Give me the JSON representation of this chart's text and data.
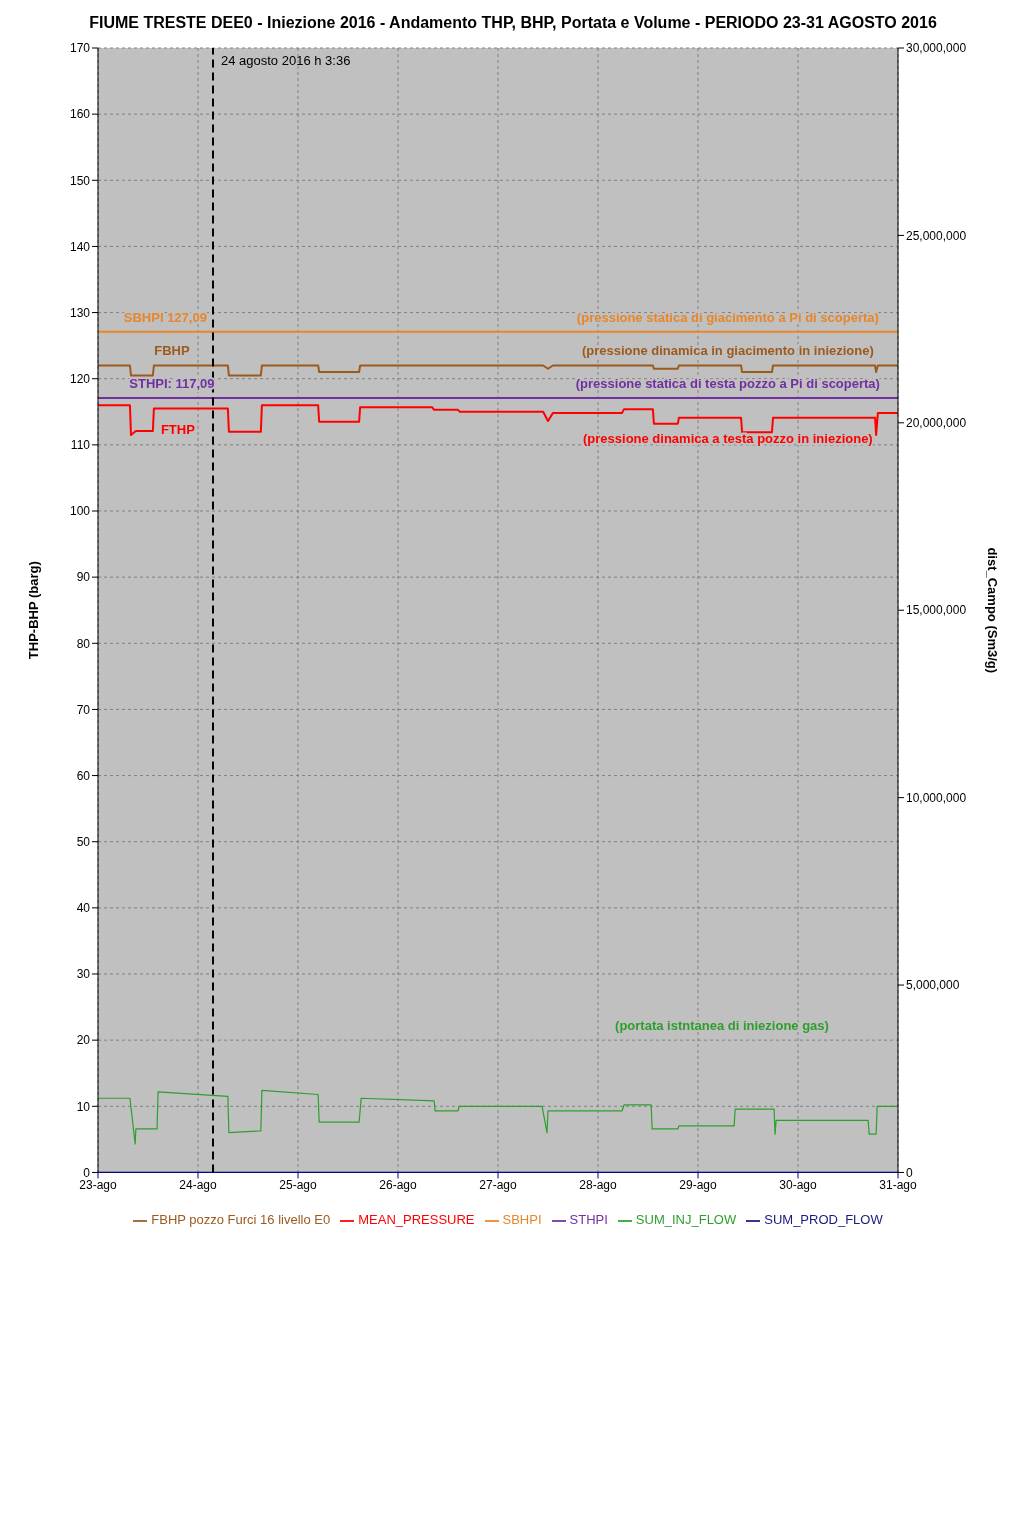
{
  "chart_data": {
    "type": "line",
    "title": "FIUME  TRESTE DEE0 - Iniezione 2016 - Andamento THP, BHP, Portata e Volume - PERIODO 23-31 AGOSTO 2016",
    "ylabel": "THP-BHP (barg)",
    "y2label": "dist_Campo (Sm3/g)",
    "x": [
      "2016-08-23T00:00",
      "2016-08-23T07:40",
      "2016-08-23T07:55",
      "2016-08-23T09:05",
      "2016-08-23T13:10",
      "2016-08-23T13:25",
      "2016-08-24T07:10",
      "2016-08-24T07:25",
      "2016-08-24T15:05",
      "2016-08-24T15:20",
      "2016-08-25T04:50",
      "2016-08-25T05:05",
      "2016-08-25T14:40",
      "2016-08-25T14:55",
      "2016-08-26T08:10",
      "2016-08-26T08:40",
      "2016-08-26T14:25",
      "2016-08-26T14:50",
      "2016-08-27T10:50",
      "2016-08-27T12:00",
      "2016-08-27T13:10",
      "2016-08-28T05:45",
      "2016-08-28T06:15",
      "2016-08-28T13:10",
      "2016-08-28T13:25",
      "2016-08-28T19:10",
      "2016-08-28T19:25",
      "2016-08-29T10:20",
      "2016-08-29T10:35",
      "2016-08-29T17:45",
      "2016-08-29T18:00",
      "2016-08-30T18:30",
      "2016-08-30T18:45",
      "2016-08-30T19:10",
      "2016-08-31T00:00"
    ],
    "series": [
      {
        "name": "SUM_PROD_FLOW",
        "color": "#1a1a80",
        "axis": "y2",
        "x": [
          "2016-08-23T00:00",
          "2016-08-31T00:00"
        ],
        "values": [
          0,
          0
        ]
      },
      {
        "name": "STHPI",
        "color": "#7030a0",
        "x": [
          "2016-08-23T00:00",
          "2016-08-31T00:00"
        ],
        "values": [
          117.09,
          117.09
        ]
      },
      {
        "name": "FBHP pozzo Furci 16 livello E0",
        "color": "#9c5a1e",
        "values": [
          122,
          122,
          120.5,
          120.5,
          120.5,
          122,
          122,
          120.5,
          120.5,
          122,
          122,
          121,
          121,
          122,
          122,
          122,
          122,
          122,
          122,
          121.5,
          122,
          122,
          122,
          122,
          121.5,
          121.5,
          122,
          122,
          121,
          121,
          122,
          122,
          121,
          122,
          122
        ]
      },
      {
        "name": "MEAN_PRESSURE",
        "color": "#ff0000",
        "values": [
          116,
          116,
          111.5,
          112.1,
          112.1,
          115.5,
          115.5,
          112,
          112,
          116,
          116,
          113.5,
          113.5,
          115.7,
          115.7,
          115.3,
          115.3,
          115,
          115,
          113.6,
          114.8,
          114.8,
          115.4,
          115.4,
          113.2,
          113.2,
          114.1,
          114.1,
          111.9,
          111.9,
          114.1,
          114.1,
          111.5,
          114.8,
          114.8
        ]
      },
      {
        "name": "SBHPI",
        "color": "#e8862a",
        "x": [
          "2016-08-23T00:00",
          "2016-08-31T00:00"
        ],
        "values": [
          127.09,
          127.09
        ]
      },
      {
        "name": "SUM_INJ_FLOW",
        "color": "#2e9e2e",
        "axis": "y2",
        "x": [
          "2016-08-23T00:00",
          "2016-08-23T07:40",
          "2016-08-23T08:55",
          "2016-08-23T09:05",
          "2016-08-23T14:10",
          "2016-08-23T14:25",
          "2016-08-24T07:10",
          "2016-08-24T07:25",
          "2016-08-24T15:05",
          "2016-08-24T15:20",
          "2016-08-25T04:50",
          "2016-08-25T05:05",
          "2016-08-25T14:40",
          "2016-08-25T15:10",
          "2016-08-26T08:40",
          "2016-08-26T08:55",
          "2016-08-26T14:25",
          "2016-08-26T14:40",
          "2016-08-27T10:35",
          "2016-08-27T11:45",
          "2016-08-27T12:00",
          "2016-08-28T05:45",
          "2016-08-28T06:15",
          "2016-08-28T12:45",
          "2016-08-28T13:00",
          "2016-08-28T19:10",
          "2016-08-28T19:25",
          "2016-08-29T08:40",
          "2016-08-29T08:55",
          "2016-08-29T18:15",
          "2016-08-29T18:30",
          "2016-08-29T18:45",
          "2016-08-30T16:50",
          "2016-08-30T17:05",
          "2016-08-30T18:45",
          "2016-08-30T19:00",
          "2016-08-31T00:00"
        ],
        "values": [
          1980000,
          1980000,
          760000,
          1160000,
          1160000,
          2150000,
          2030000,
          1060000,
          1110000,
          2190000,
          2080000,
          1340000,
          1340000,
          1980000,
          1910000,
          1640000,
          1640000,
          1760000,
          1760000,
          1060000,
          1640000,
          1640000,
          1800000,
          1800000,
          1160000,
          1160000,
          1240000,
          1240000,
          1690000,
          1690000,
          1020000,
          1390000,
          1390000,
          1020000,
          1020000,
          1760000,
          1760000
        ]
      }
    ],
    "xlim": [
      "2016-08-23",
      "2016-08-31"
    ],
    "xticks": [
      {
        "value": "2016-08-23",
        "label": "23-ago"
      },
      {
        "value": "2016-08-24",
        "label": "24-ago"
      },
      {
        "value": "2016-08-25",
        "label": "25-ago"
      },
      {
        "value": "2016-08-26",
        "label": "26-ago"
      },
      {
        "value": "2016-08-27",
        "label": "27-ago"
      },
      {
        "value": "2016-08-28",
        "label": "28-ago"
      },
      {
        "value": "2016-08-29",
        "label": "29-ago"
      },
      {
        "value": "2016-08-30",
        "label": "30-ago"
      },
      {
        "value": "2016-08-31",
        "label": "31-ago"
      }
    ],
    "ylim": [
      0,
      170
    ],
    "yticks": [
      0,
      10,
      20,
      30,
      40,
      50,
      60,
      70,
      80,
      90,
      100,
      110,
      120,
      130,
      140,
      150,
      160,
      170
    ],
    "y2lim": [
      0,
      30000000
    ],
    "y2ticks": [
      0,
      {
        "value": 5000000,
        "label": "5,000,000"
      },
      {
        "value": 10000000,
        "label": "10,000,000"
      },
      {
        "value": 15000000,
        "label": "15,000,000"
      },
      {
        "value": 20000000,
        "label": "20,000,000"
      },
      {
        "value": 25000000,
        "label": "25,000,000"
      },
      {
        "value": 30000000,
        "label": "30,000,000"
      }
    ],
    "ref_lines": [
      {
        "axis": "x",
        "value": "2016-08-24T03:36",
        "label": "24 agosto 2016 h 3:36",
        "color": "#000000",
        "line_style": "dashed"
      }
    ],
    "annotations": [
      {
        "text": "(pressione statica di giacimento a Pi di scoperta)",
        "x": "2016-08-29T07:10",
        "y": 127.09
      },
      {
        "text": "(pressione dinamica in giacimento in iniezione)",
        "x": "2016-08-29T07:10",
        "y": 122
      },
      {
        "text": "(pressione statica di testa pozzo a Pi di scoperta)",
        "x": "2016-08-29T07:10",
        "y": 117.09
      },
      {
        "text": "(pressione dinamica a testa pozzo in iniezione)",
        "x": "2016-08-29T07:10",
        "y": 114.1
      },
      "(portata istntanea di iniezione gas)",
      {
        "text": "SBHPI 127,09",
        "x": "2016-08-23T16:10",
        "y": 127.09
      },
      {
        "text": "FBHP",
        "x": "2016-08-23T17:45",
        "y": 122
      },
      {
        "text": "STHPI: 117,09",
        "x": "2016-08-23T17:45",
        "y": 117.09
      },
      {
        "text": "FTHP",
        "x": "2016-08-23T19:10",
        "y": 115.5
      }
    ],
    "grid": true,
    "legend": "bottom"
  }
}
